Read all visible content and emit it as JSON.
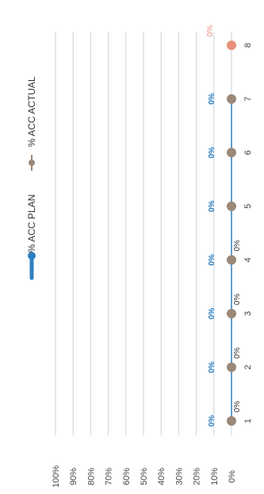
{
  "chart_data": {
    "type": "line",
    "orientation": "rotated-90",
    "categories": [
      "1",
      "2",
      "3",
      "4",
      "5",
      "6",
      "7",
      "8"
    ],
    "y_ticks": [
      "0%",
      "10%",
      "20%",
      "30%",
      "40%",
      "50%",
      "60%",
      "70%",
      "80%",
      "90%",
      "100%"
    ],
    "ylim": [
      0,
      100
    ],
    "grid": true,
    "legend_position": "top",
    "series": [
      {
        "name": "% ACC PLAN",
        "values": [
          0,
          0,
          0,
          0,
          0,
          0,
          0,
          null
        ],
        "data_labels": [
          "0%",
          "0%",
          "0%",
          "0%",
          "0%",
          "0%",
          "0%",
          ""
        ],
        "color": "#2f7fbf"
      },
      {
        "name": "% ACC ACTUAL",
        "values": [
          0,
          0,
          0,
          0,
          0,
          0,
          0,
          0
        ],
        "data_labels": [
          "0%",
          "0%",
          "0%",
          "0%",
          "",
          "",
          "",
          "0%"
        ],
        "color": "#9b8877",
        "last_point_color": "#e8907a"
      }
    ]
  }
}
